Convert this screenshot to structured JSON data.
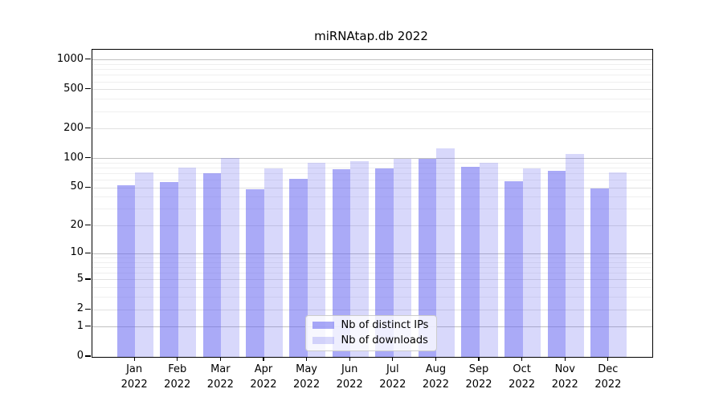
{
  "title": "miRNAtap.db 2022",
  "chart_data": {
    "type": "bar",
    "title": "miRNAtap.db 2022",
    "months": [
      "Jan",
      "Feb",
      "Mar",
      "Apr",
      "May",
      "Jun",
      "Jul",
      "Aug",
      "Sep",
      "Oct",
      "Nov",
      "Dec"
    ],
    "year": "2022",
    "series": [
      {
        "name": "Nb of distinct IPs",
        "color": "rgba(100,100,240,0.55)",
        "values": [
          53,
          57,
          71,
          48,
          62,
          77,
          79,
          99,
          82,
          59,
          75,
          49
        ]
      },
      {
        "name": "Nb of downloads",
        "color": "rgba(100,100,240,0.25)",
        "values": [
          72,
          81,
          101,
          79,
          91,
          93,
          100,
          126,
          91,
          79,
          112,
          72
        ]
      }
    ],
    "yscale": "log1p",
    "ylim": [
      0,
      1268
    ],
    "yticks": [
      0,
      1,
      2,
      5,
      10,
      20,
      50,
      100,
      200,
      500,
      1000
    ],
    "minor_yticks": [
      3,
      4,
      6,
      7,
      8,
      9,
      30,
      40,
      60,
      70,
      80,
      90,
      300,
      400,
      600,
      700,
      800,
      900
    ],
    "grid": true,
    "legend_position": "lower center",
    "xlabel": "",
    "ylabel": ""
  },
  "colors": {
    "bar_distinct_ips": "rgba(100,100,240,0.55)",
    "bar_downloads": "rgba(100,100,240,0.25)",
    "gridline_power10": "#c0c0c0",
    "gridline_labeled": "#e1e1e1",
    "gridline_minor": "#efefef",
    "spine": "#000000",
    "text": "#000000",
    "legend_bg": "rgba(255,255,255,0.8)",
    "legend_border": "#cccccc"
  }
}
